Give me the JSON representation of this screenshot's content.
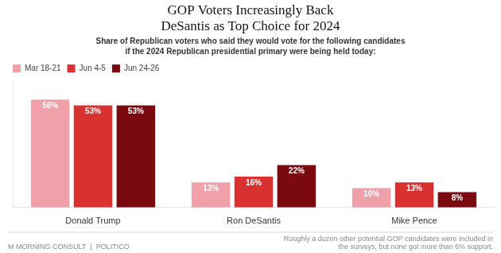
{
  "chart_data": {
    "type": "bar",
    "title": "GOP Voters Increasingly Back\nDeSantis as Top Choice for 2024",
    "subtitle": "Share of Republican voters who said they would vote for the following candidates\nif the 2024 Republican presidential primary were being held today:",
    "categories": [
      "Donald Trump",
      "Ron DeSantis",
      "Mike Pence"
    ],
    "series": [
      {
        "name": "Mar 18-21",
        "color": "#f0a0a8",
        "values": [
          56,
          13,
          10
        ],
        "value_labels": [
          "56%",
          "13%",
          "10%"
        ]
      },
      {
        "name": "Jun 4-5",
        "color": "#d93030",
        "values": [
          53,
          16,
          13
        ],
        "value_labels": [
          "53%",
          "16%",
          "13%"
        ]
      },
      {
        "name": "Jun 24-26",
        "color": "#7a0a10",
        "values": [
          53,
          22,
          8
        ],
        "value_labels": [
          "53%",
          "22%",
          "8%"
        ]
      }
    ],
    "ylim": [
      0,
      66
    ],
    "grid": false,
    "legend": "upper left",
    "data_labels": true,
    "tick_labels": "x",
    "annotations": [
      "M MORNING CONSULT  |  POLITICO",
      "Roughly a dozen other potential GOP candidates were included in\nthe surveys, but none got more than 6% support."
    ]
  }
}
